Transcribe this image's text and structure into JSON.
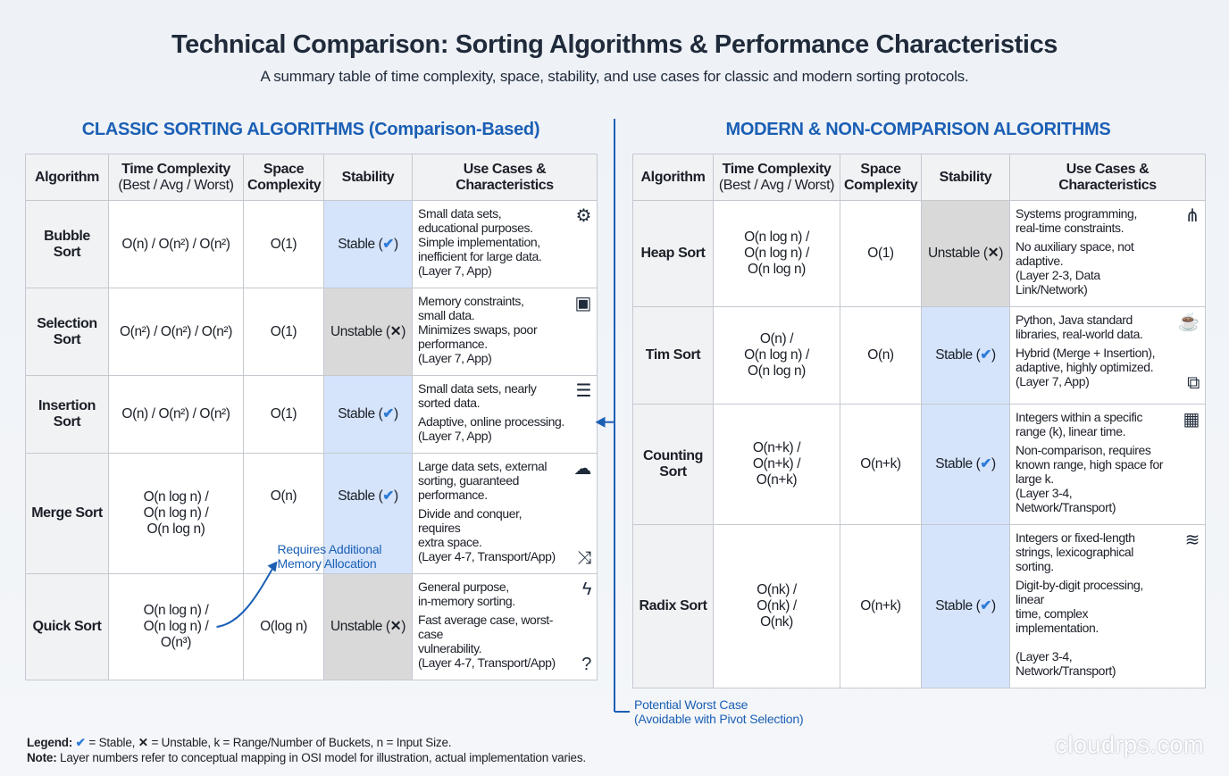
{
  "title": "Technical Comparison: Sorting Algorithms & Performance Characteristics",
  "subtitle": "A summary table of time complexity, space, stability, and use cases for classic and modern sorting protocols.",
  "colors": {
    "accent": "#1b5fb5",
    "stable_bg": "#d5e4fb",
    "unstable_bg": "#d9d9d9",
    "check": "#2e7bd6"
  },
  "headers": {
    "algorithm": "Algorithm",
    "time": "Time Complexity",
    "time_sub": "(Best / Avg / Worst)",
    "space": "Space\nComplexity",
    "stability": "Stability",
    "use": "Use Cases &\nCharacteristics"
  },
  "classic": {
    "title": "CLASSIC SORTING ALGORITHMS (Comparison-Based)",
    "rows": [
      {
        "name": "Bubble\nSort",
        "time": "O(n) / O(n²) / O(n²)",
        "space": "O(1)",
        "stability": "Stable (",
        "stable": true,
        "use": [
          "Small data sets,\neducational purposes.\nSimple implementation,\ninefficient for large data.\n(Layer 7, App)"
        ],
        "icon": "gears-icon",
        "glyph": "⚙"
      },
      {
        "name": "Selection\nSort",
        "time": "O(n²) / O(n²) / O(n²)",
        "space": "O(1)",
        "stability": "Unstable (",
        "stable": false,
        "use": [
          "Memory constraints,\nsmall data.\nMinimizes swaps, poor\nperformance.\n(Layer 7, App)"
        ],
        "icon": "chip-icon",
        "glyph": "▣"
      },
      {
        "name": "Insertion\nSort",
        "time": "O(n) / O(n²) / O(n²)",
        "space": "O(1)",
        "stability": "Stable (",
        "stable": true,
        "use": [
          "Small data sets, nearly\nsorted data.",
          "Adaptive, online processing.\n(Layer 7, App)"
        ],
        "icon": "list-icon",
        "glyph": "☰"
      },
      {
        "name": "Merge Sort",
        "time": "O(n log n) /\nO(n log n) /\nO(n log n)",
        "space": "O(n)",
        "stability": "Stable (",
        "stable": true,
        "use": [
          "Large data sets, external\nsorting, guaranteed performance.",
          "Divide and conquer, requires\nextra space.\n(Layer 4-7, Transport/App)"
        ],
        "icon": "cloud-icon",
        "glyph": "☁",
        "icon2": "merge-arrows-icon",
        "glyph2": "⤨"
      },
      {
        "name": "Quick Sort",
        "time": "O(n log n) /\nO(n log n) /\nO(n³)",
        "space": "O(log n)",
        "stability": "Unstable (",
        "stable": false,
        "use": [
          "General purpose,\nin-memory sorting.",
          "Fast average case, worst-case\nvulnerability.\n(Layer 4-7, Transport/App)"
        ],
        "icon": "lightning-icon",
        "glyph": "ϟ",
        "icon2": "question-icon",
        "glyph2": "?"
      }
    ]
  },
  "modern": {
    "title": "MODERN & NON-COMPARISON ALGORITHMS",
    "rows": [
      {
        "name": "Heap Sort",
        "time": "O(n log n) /\nO(n log n) /\nO(n log n)",
        "space": "O(1)",
        "stability": "Unstable (",
        "stable": false,
        "use": [
          "Systems programming,\nreal-time constraints.",
          "No auxiliary space, not adaptive.\n(Layer 2-3, Data Link/Network)"
        ],
        "icon": "tree-icon",
        "glyph": "⋔"
      },
      {
        "name": "Tim Sort",
        "time": "O(n) /\nO(n log n) /\nO(n log n)",
        "space": "O(n)",
        "stability": "Stable (",
        "stable": true,
        "use": [
          "Python, Java standard\nlibraries, real-world data.",
          "Hybrid (Merge + Insertion),\nadaptive, highly optimized.\n(Layer 7, App)"
        ],
        "icon": "coffee-cup-icon",
        "glyph": "☕",
        "icon2": "python-icon",
        "glyph2": "⧉"
      },
      {
        "name": "Counting\nSort",
        "time": "O(n+k) /\nO(n+k) /\nO(n+k)",
        "space": "O(n+k)",
        "stability": "Stable (",
        "stable": true,
        "use": [
          "Integers within a specific\nrange (k), linear time.",
          "Non-comparison, requires\nknown range, high space for\nlarge k.\n(Layer 3-4, Network/Transport)"
        ],
        "icon": "abacus-icon",
        "glyph": "▦"
      },
      {
        "name": "Radix Sort",
        "time": "O(nk) /\nO(nk) /\nO(nk)",
        "space": "O(n+k)",
        "stability": "Stable (",
        "stable": true,
        "use": [
          "Integers or fixed-length\nstrings, lexicographical sorting.",
          "Digit-by-digit processing, linear\ntime, complex implementation.\n\n(Layer 3-4, Network/Transport)"
        ],
        "icon": "layers-icon",
        "glyph": "≋"
      }
    ]
  },
  "symbols": {
    "check": "✔",
    "cross": "✕",
    "close_paren": ")"
  },
  "annotations": {
    "memory": "Requires Additional\nMemory Allocation",
    "worst_case": "Potential Worst Case\n(Avoidable with Pivot Selection)"
  },
  "legend": {
    "legend_label": "Legend:",
    "legend_text": " = Stable,  = Unstable, k = Range/Number of Buckets, n = Input Size.",
    "stable_text": " = Stable, ",
    "unstable_text": " = Unstable, k = Range/Number of Buckets, n = Input Size.",
    "note_label": "Note:",
    "note_text": " Layer numbers refer to conceptual mapping in OSI model for illustration, actual implementation varies."
  },
  "watermark": "cloudrps.com"
}
